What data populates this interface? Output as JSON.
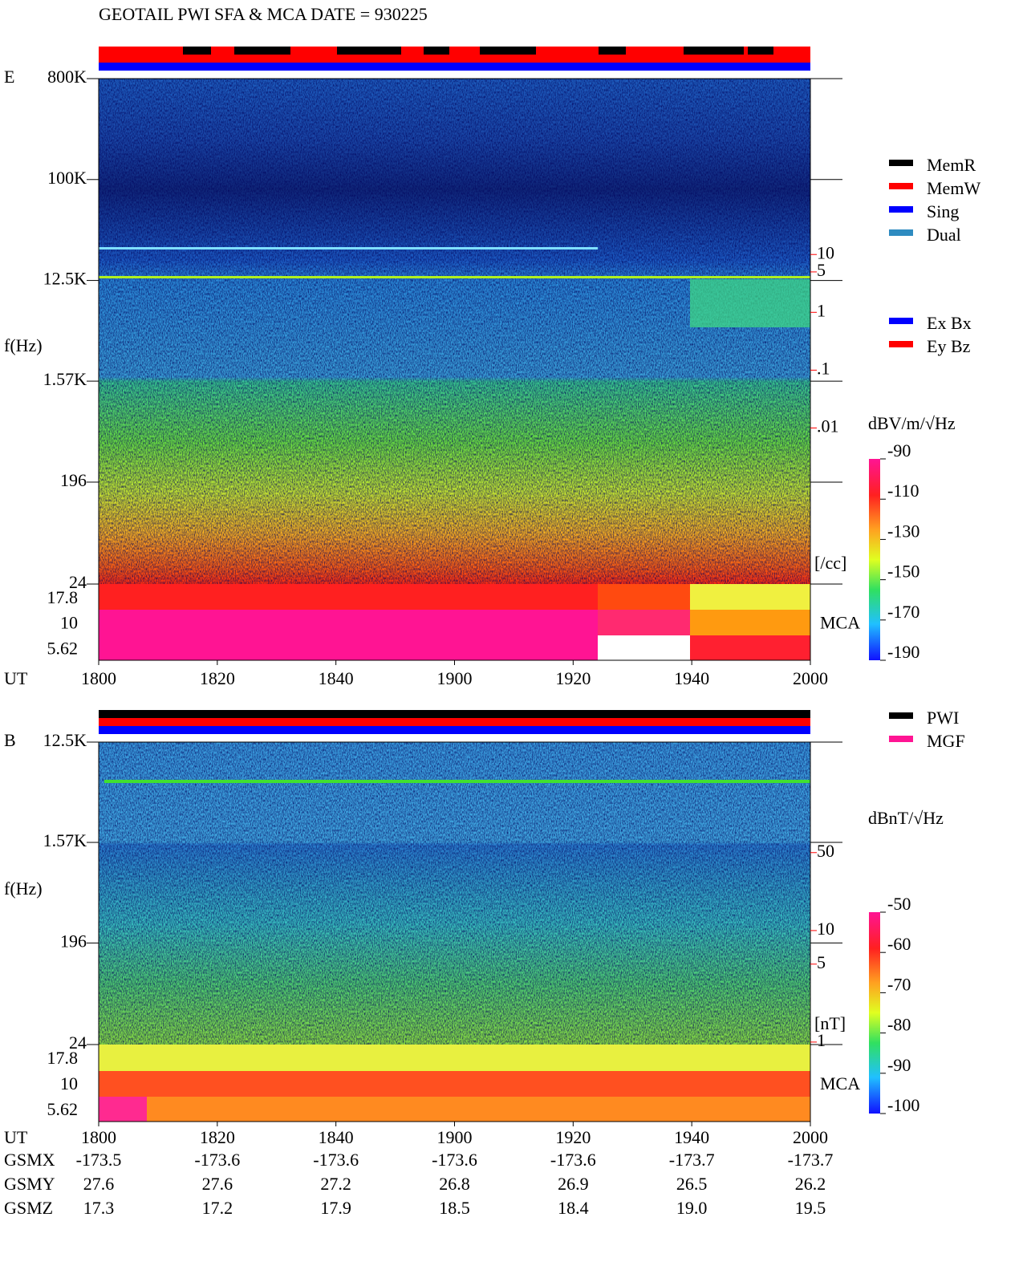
{
  "title": "GEOTAIL  PWI SFA & MCA   DATE = 930225",
  "chart_data": [
    {
      "type": "spectrogram",
      "panel_label": "E",
      "y_label": "f(Hz)",
      "x_label": "UT",
      "log_y": true,
      "ylim": [
        24,
        800000
      ],
      "yticks": [
        {
          "value": 800000,
          "label": "800K"
        },
        {
          "value": 100000,
          "label": "100K"
        },
        {
          "value": 12500,
          "label": "12.5K"
        },
        {
          "value": 1570,
          "label": "1.57K"
        },
        196,
        24
      ],
      "mca_channels": [
        "17.8",
        "10",
        "5.62"
      ],
      "mca_label": "MCA",
      "x_tick_labels": [
        "1800",
        "1820",
        "1840",
        "1900",
        "1920",
        "1940",
        "2000"
      ],
      "y2_label": "[/cc]",
      "y2lim": [
        2e-05,
        11000
      ],
      "y2ticks": [
        10,
        5,
        1,
        {
          "value": 0.1,
          "label": ".1"
        },
        {
          "value": 0.01,
          "label": ".01"
        }
      ],
      "y2_color": "#ff0000",
      "colorbar_label": "dBV/m/√Hz",
      "colorbar_lim": [
        -190,
        -90
      ],
      "colorbar_ticks": [
        -90,
        -110,
        -130,
        -150,
        -170,
        -190
      ],
      "legend": [
        {
          "name": "MemR",
          "color": "#000000"
        },
        {
          "name": "MemW",
          "color": "#ff0000"
        },
        {
          "name": "Sing",
          "color": "#0000ff"
        },
        {
          "name": "Dual",
          "color": "#2e8bc0"
        }
      ],
      "legend2": [
        {
          "name": "Ex Bx",
          "color": "#0000ff"
        },
        {
          "name": "Ey Bz",
          "color": "#ff0000"
        }
      ]
    },
    {
      "type": "spectrogram",
      "panel_label": "B",
      "y_label": "f(Hz)",
      "x_label": "UT",
      "log_y": true,
      "ylim": [
        24,
        12500
      ],
      "yticks": [
        {
          "value": 12500,
          "label": "12.5K"
        },
        {
          "value": 1570,
          "label": "1.57K"
        },
        196,
        24
      ],
      "mca_channels": [
        "17.8",
        "10",
        "5.62"
      ],
      "mca_label": "MCA",
      "x_tick_labels": [
        "1800",
        "1820",
        "1840",
        "1900",
        "1920",
        "1940",
        "2000"
      ],
      "y2_label": "[nT]",
      "y2lim": [
        0.95,
        490
      ],
      "y2ticks": [
        50,
        10,
        5,
        1
      ],
      "y2_color": "#ff0000",
      "colorbar_label": "dBnT/√Hz",
      "colorbar_lim": [
        -100,
        -50
      ],
      "colorbar_ticks": [
        -50,
        -60,
        -70,
        -80,
        -90,
        -100
      ],
      "legend": [
        {
          "name": "PWI",
          "color": "#000000"
        },
        {
          "name": "MGF",
          "color": "#ff1493"
        }
      ],
      "legend2": []
    }
  ],
  "orbit": {
    "x_label": "UT",
    "rows": [
      {
        "name": "GSMX",
        "values": [
          -173.5,
          -173.6,
          -173.6,
          -173.6,
          -173.6,
          -173.7,
          -173.7
        ]
      },
      {
        "name": "GSMY",
        "values": [
          27.6,
          27.6,
          27.2,
          26.8,
          26.9,
          26.5,
          26.2
        ]
      },
      {
        "name": "GSMZ",
        "values": [
          17.3,
          17.2,
          17.9,
          18.5,
          18.4,
          {
            "value": 19,
            "label": "19.0"
          },
          19.5
        ]
      }
    ]
  }
}
